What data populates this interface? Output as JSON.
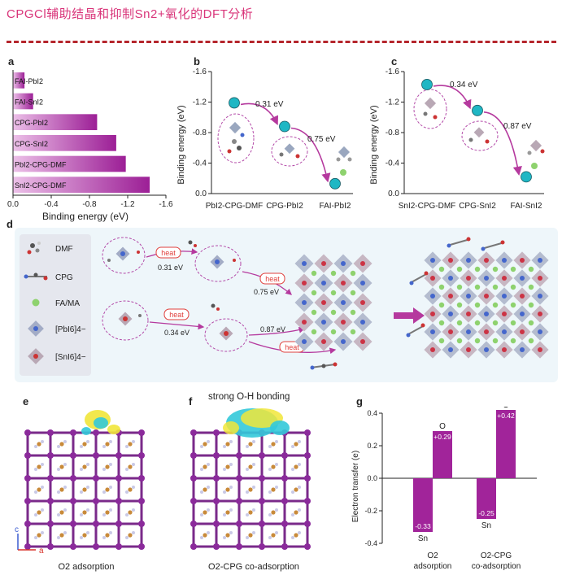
{
  "header": {
    "title": "CPGCl辅助结晶和抑制Sn2+氧化的DFT分析"
  },
  "panels": {
    "a": "a",
    "b": "b",
    "c": "c",
    "d": "d",
    "e": "e",
    "f": "f",
    "g": "g"
  },
  "panel_a": {
    "x_axis_label": "Binding energy (eV)"
  },
  "panel_b": {
    "y_axis_label": "Binding energy (eV)",
    "step1_label": "0.31 eV",
    "step2_label": "0.75 eV"
  },
  "panel_c": {
    "y_axis_label": "Binding energy (eV)",
    "step1_label": "0.34 eV",
    "step2_label": "0.87 eV"
  },
  "panel_d": {
    "legend": [
      "DMF",
      "CPG",
      "FA/MA",
      "[PbI6]4−",
      "[SnI6]4−"
    ],
    "heat_label": "heat",
    "energy_labels": [
      "0.31 eV",
      "0.75 eV",
      "0.34 eV",
      "0.87 eV"
    ]
  },
  "panel_e": {
    "caption": "O2 adsorption",
    "axis_c": "c",
    "axis_a": "a"
  },
  "panel_f": {
    "caption": "O2-CPG co-adsorption",
    "annotation": "strong O-H bonding"
  },
  "panel_g": {
    "y_axis_label": "Electron transfer (e)",
    "categories": [
      "O2\nadsorption",
      "O2-CPG\nco-adsorption"
    ],
    "bar_labels": {
      "o1": "+0.29",
      "o2": "+0.42",
      "s1": "-0.33",
      "s2": "-0.25"
    },
    "atom_labels": {
      "o1": "O",
      "o2": "O",
      "s1": "Sn",
      "s2": "Sn"
    },
    "category_lines": [
      [
        "O2",
        "adsorption"
      ],
      [
        "O2-CPG",
        "co-adsorption"
      ]
    ]
  },
  "colors": {
    "bar": "#a1249a",
    "bar_light": "#e7b3e3",
    "accent_title": "#d9357a",
    "cyan": "#1fb7c4",
    "green": "#8ed26e",
    "heat": "#e0403d",
    "arrow": "#b5399e"
  },
  "chart_data": [
    {
      "type": "bar",
      "orientation": "horizontal",
      "title": "",
      "xlabel": "Binding energy (eV)",
      "ylabel": "",
      "categories": [
        "FAI-PbI2",
        "FAI-SnI2",
        "CPG-PbI2",
        "CPG-SnI2",
        "PbI2-CPG-DMF",
        "SnI2-CPG-DMF"
      ],
      "values": [
        -0.12,
        -0.21,
        -0.88,
        -1.08,
        -1.18,
        -1.43
      ],
      "xlim": [
        0,
        -1.6
      ],
      "xticks": [
        "0.0",
        "-0.4",
        "-0.8",
        "-1.2",
        "-1.6"
      ]
    },
    {
      "type": "scatter",
      "title": "",
      "xlabel": "",
      "ylabel": "Binding energy (eV)",
      "categories": [
        "PbI2-CPG-DMF",
        "CPG-PbI2",
        "FAI-PbI2"
      ],
      "values": [
        -1.19,
        -0.88,
        -0.13
      ],
      "ylim": [
        0,
        -1.6
      ],
      "yticks": [
        "0.0",
        "-0.4",
        "-0.8",
        "-1.2",
        "-1.6"
      ],
      "annotations": [
        "0.31 eV",
        "0.75 eV"
      ]
    },
    {
      "type": "scatter",
      "title": "",
      "xlabel": "",
      "ylabel": "Binding energy (eV)",
      "categories": [
        "SnI2-CPG-DMF",
        "CPG-SnI2",
        "FAI-SnI2"
      ],
      "values": [
        -1.43,
        -1.09,
        -0.22
      ],
      "ylim": [
        0,
        -1.6
      ],
      "yticks": [
        "0.0",
        "-0.4",
        "-0.8",
        "-1.2",
        "-1.6"
      ],
      "annotations": [
        "0.34 eV",
        "0.87 eV"
      ]
    },
    {
      "type": "bar",
      "title": "",
      "xlabel": "",
      "ylabel": "Electron transfer (e)",
      "categories": [
        "O2 adsorption",
        "O2-CPG co-adsorption"
      ],
      "series": [
        {
          "name": "O",
          "values": [
            0.29,
            0.42
          ]
        },
        {
          "name": "Sn",
          "values": [
            -0.33,
            -0.25
          ]
        }
      ],
      "ylim": [
        -0.4,
        0.4
      ],
      "yticks": [
        "0.4",
        "0.2",
        "0.0",
        "-0.2",
        "-0.4"
      ]
    }
  ]
}
